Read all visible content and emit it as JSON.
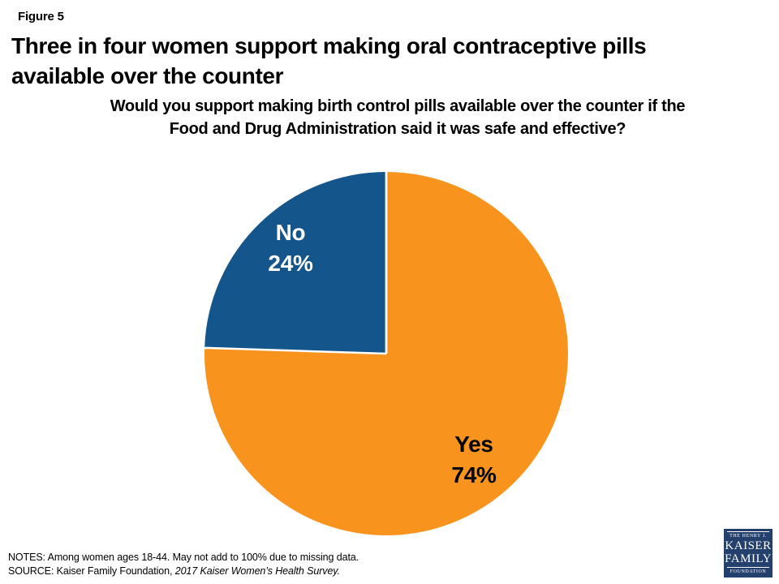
{
  "header": {
    "figure_label": "Figure 5",
    "title_line1": "Three in four women support making oral contraceptive pills",
    "title_line2": "available over the counter",
    "subtitle_line1": "Would you support making birth control pills available over the counter if the",
    "subtitle_line2": "Food and Drug Administration said it was safe and effective?"
  },
  "chart_data": {
    "type": "pie",
    "title": "Would you support making birth control pills available over the counter if the Food and Drug Administration said it was safe and effective?",
    "units": "%",
    "start_angle_deg": 0,
    "direction": "clockwise",
    "slices": [
      {
        "label": "Yes",
        "value": 74,
        "display": "74%",
        "color": "#F8941E",
        "label_color": "#000000"
      },
      {
        "label": "No",
        "value": 24,
        "display": "24%",
        "color": "#14568B",
        "label_color": "#FFFFFF"
      }
    ],
    "divider_color": "#FFFFFF"
  },
  "footer": {
    "notes_label": "NOTES:",
    "notes_text": "Among women ages 18-44. May not add to 100% due to missing data.",
    "source_label": "SOURCE:",
    "source_text": "Kaiser Family Foundation,",
    "source_citation": "2017 Kaiser Women’s Health Survey."
  },
  "logo": {
    "line1": "THE HENRY J.",
    "line2": "KAISER",
    "line3": "FAMILY",
    "line4": "FOUNDATION",
    "bg_color": "#24406C"
  }
}
